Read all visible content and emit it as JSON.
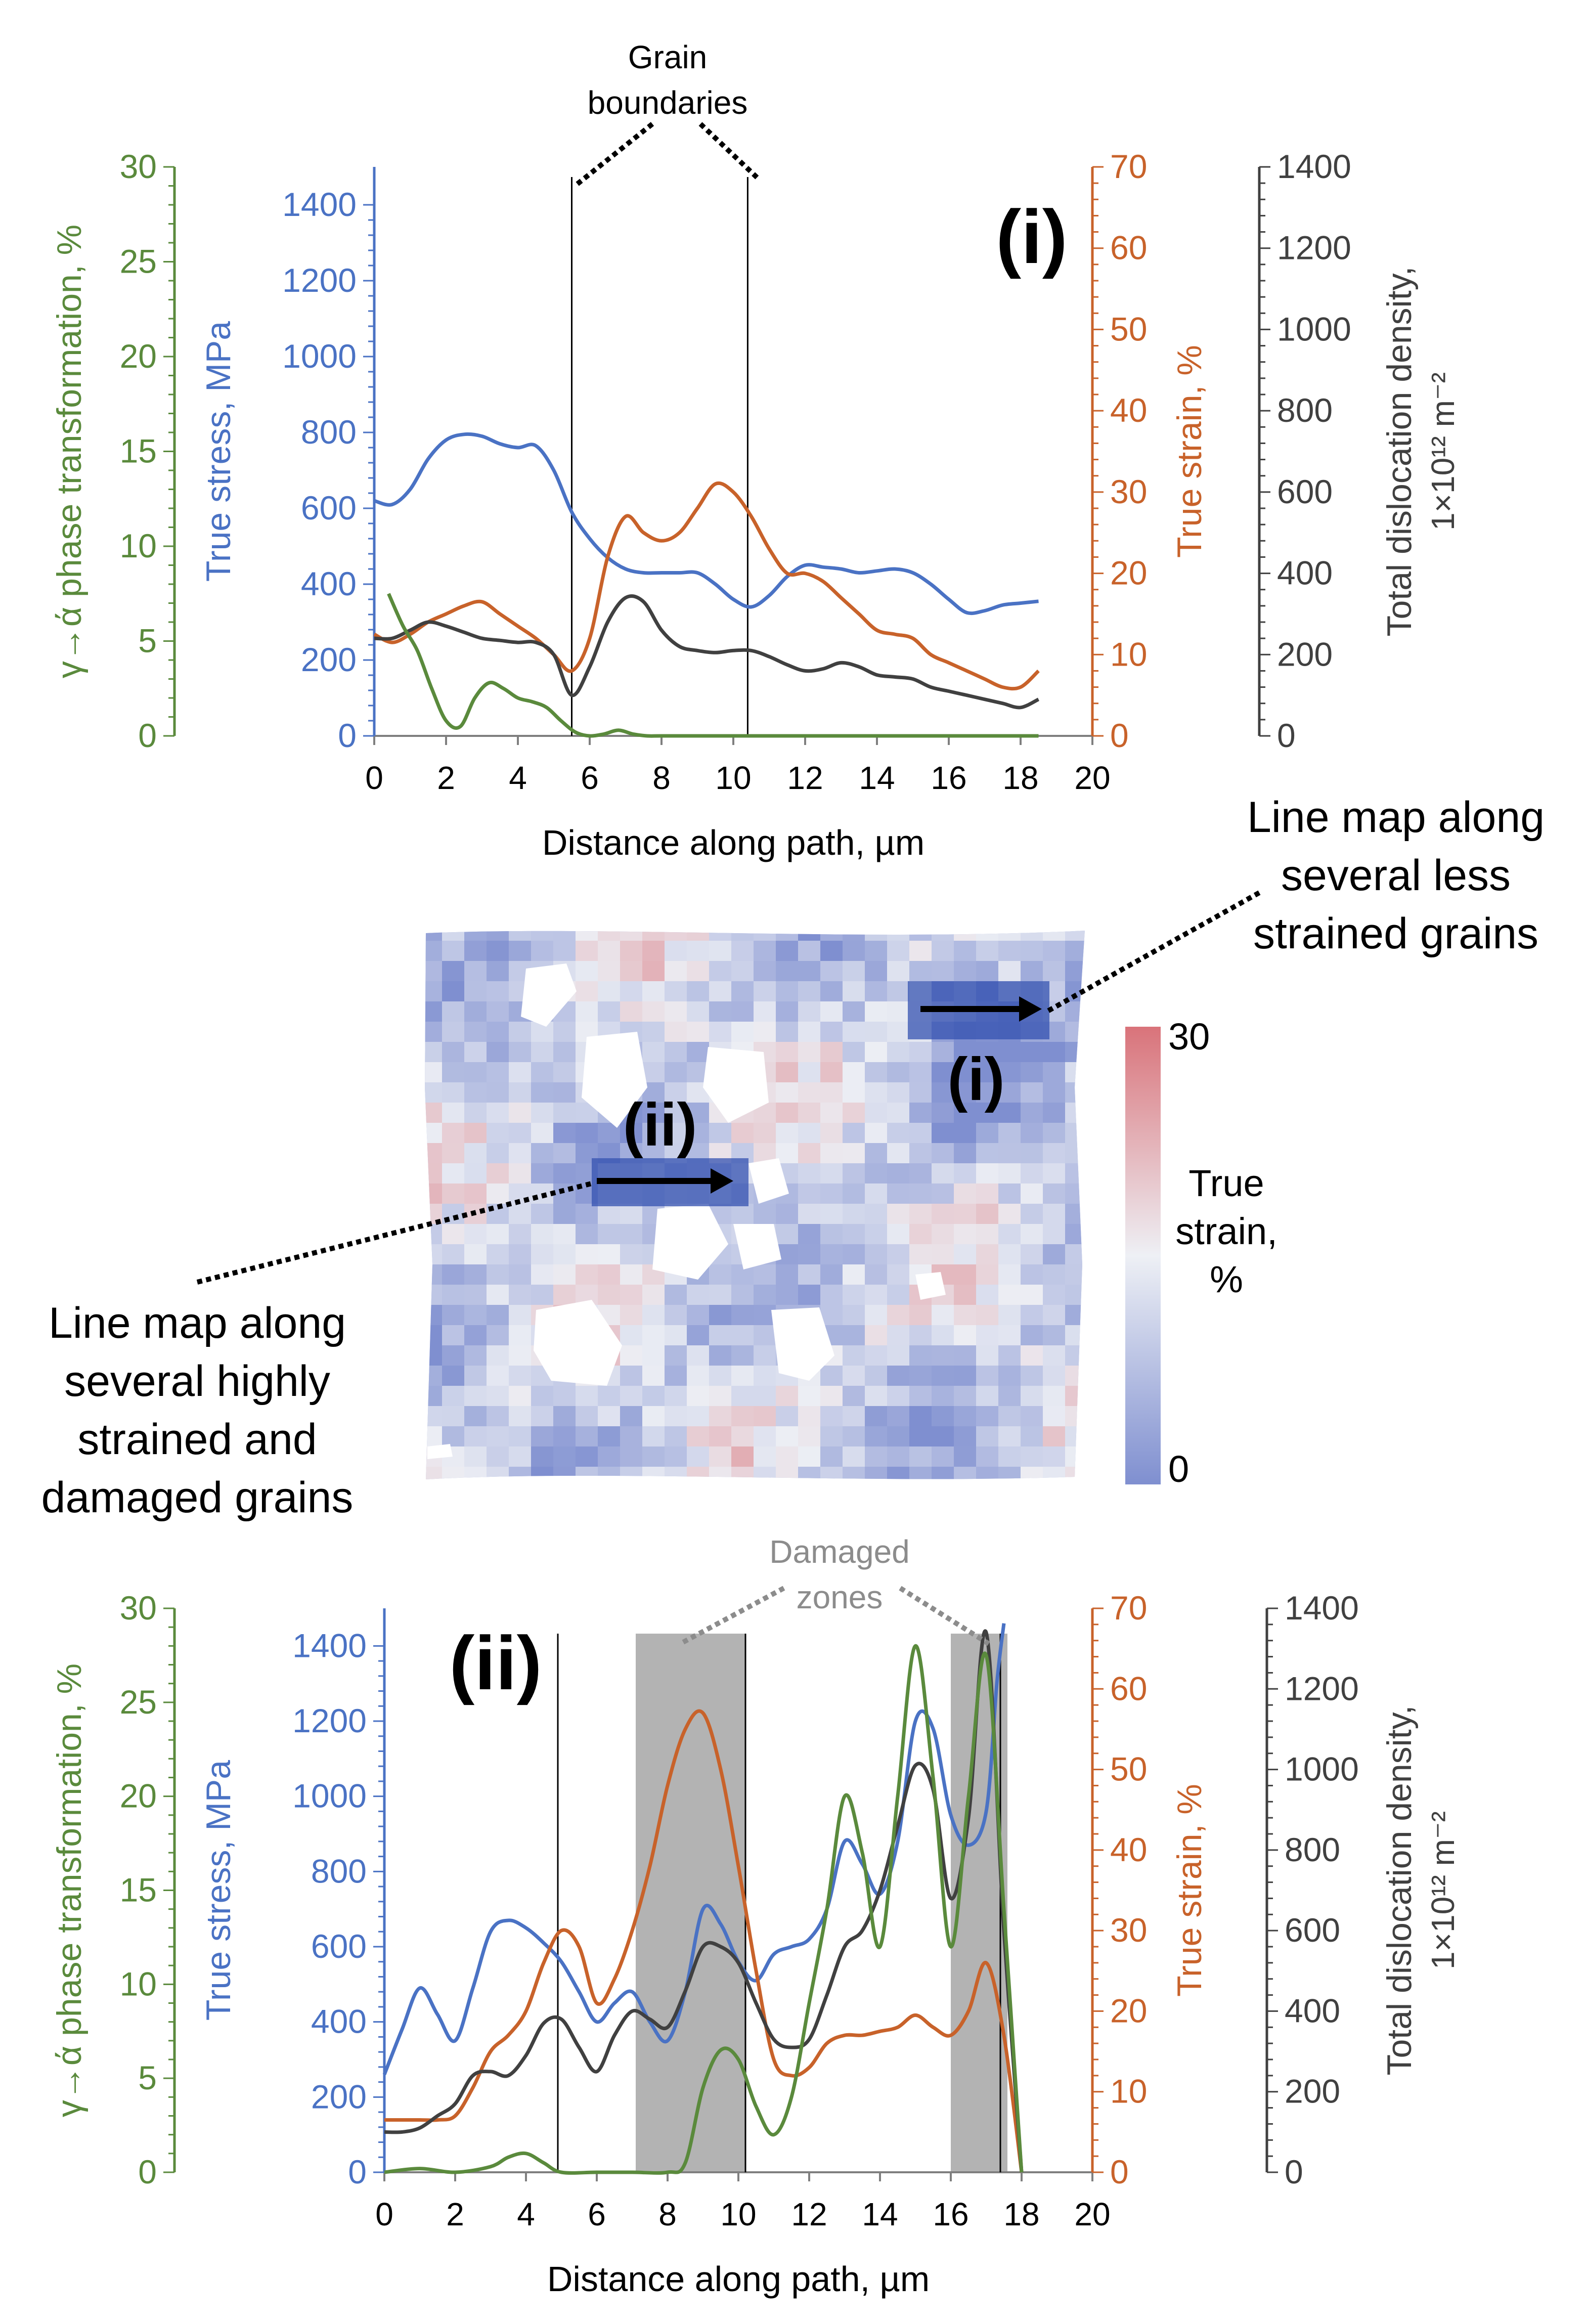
{
  "colors": {
    "phase": "#5a8a3c",
    "stress": "#4a72c4",
    "strain": "#c8622a",
    "disloc": "#404040",
    "zone_fill": "#b3b3b3",
    "note_gray": "#8c8c8c",
    "map_blue": "#7f8fd0",
    "map_red": "#d9737a"
  },
  "annotations": {
    "grain_boundaries": [
      "Grain",
      "boundaries"
    ],
    "damaged_zones": [
      "Damaged",
      "zones"
    ],
    "less_strained": [
      "Line map along",
      "several less",
      "strained grains"
    ],
    "highly_strained": [
      "Line map along",
      "several highly",
      "strained and",
      "damaged grains"
    ],
    "map_label_i": "(i)",
    "map_label_ii": "(ii)",
    "colorbar_max": "30",
    "colorbar_min": "0",
    "colorbar_title": [
      "True",
      "strain,",
      "%"
    ]
  },
  "chart_data": [
    {
      "type": "line",
      "panel_label": "(i)",
      "xlabel": "Distance along path, µm",
      "xlim": [
        0,
        20
      ],
      "xticks": [
        "0",
        "2",
        "4",
        "6",
        "8",
        "10",
        "12",
        "14",
        "16",
        "18",
        "20"
      ],
      "axes": {
        "phase": {
          "label": "γ→ά phase transformation, %",
          "lim": [
            0,
            30
          ],
          "ticks": [
            "0",
            "5",
            "10",
            "15",
            "20",
            "25",
            "30"
          ]
        },
        "stress": {
          "label": "True stress, MPa",
          "lim": [
            0,
            1500
          ],
          "ticks": [
            "0",
            "200",
            "400",
            "600",
            "800",
            "1000",
            "1200",
            "1400"
          ]
        },
        "strain": {
          "label": "True strain, %",
          "lim": [
            0,
            70
          ],
          "ticks": [
            "0",
            "10",
            "20",
            "30",
            "40",
            "50",
            "60",
            "70"
          ]
        },
        "disloc": {
          "label": "Total dislocation density,",
          "label2": "1×10¹² m⁻²",
          "lim": [
            0,
            1400
          ],
          "ticks": [
            "0",
            "200",
            "400",
            "600",
            "800",
            "1000",
            "1200",
            "1400"
          ]
        }
      },
      "grain_boundaries_x": [
        5.5,
        10.4
      ],
      "series": [
        {
          "key": "stress",
          "x": [
            0,
            0.5,
            1,
            1.5,
            2,
            2.5,
            3,
            3.5,
            4,
            4.5,
            5,
            5.5,
            6,
            6.5,
            7,
            7.5,
            8,
            8.5,
            9,
            9.5,
            10,
            10.5,
            11,
            11.5,
            12,
            12.5,
            13,
            13.5,
            14,
            14.5,
            15,
            15.5,
            16,
            16.5,
            17,
            17.5,
            18,
            18.5
          ],
          "values": [
            620,
            610,
            650,
            730,
            780,
            795,
            790,
            770,
            760,
            765,
            700,
            590,
            520,
            470,
            440,
            430,
            430,
            430,
            430,
            400,
            360,
            340,
            370,
            420,
            450,
            445,
            440,
            430,
            435,
            440,
            430,
            400,
            360,
            325,
            330,
            345,
            350,
            355
          ]
        },
        {
          "key": "strain",
          "x": [
            0,
            0.5,
            1,
            1.5,
            2,
            2.5,
            3,
            3.5,
            4,
            4.5,
            5,
            5.5,
            6,
            6.5,
            7,
            7.5,
            8,
            8.5,
            9,
            9.5,
            10,
            10.5,
            11,
            11.5,
            12,
            12.5,
            13,
            13.5,
            14,
            14.5,
            15,
            15.5,
            16,
            16.5,
            17,
            17.5,
            18,
            18.5
          ],
          "values": [
            12.5,
            11.5,
            12.5,
            14,
            15,
            16,
            16.5,
            15,
            13.5,
            12,
            10,
            8,
            12,
            22,
            27,
            25,
            24,
            25,
            28,
            31,
            30,
            27,
            23,
            20,
            20,
            19,
            17,
            15,
            13,
            12.5,
            12,
            10,
            9,
            8,
            7,
            6,
            6,
            8
          ]
        },
        {
          "key": "disloc",
          "x": [
            0,
            0.5,
            1,
            1.5,
            2,
            2.5,
            3,
            3.5,
            4,
            4.5,
            5,
            5.5,
            6,
            6.5,
            7,
            7.5,
            8,
            8.5,
            9,
            9.5,
            10,
            10.5,
            11,
            11.5,
            12,
            12.5,
            13,
            13.5,
            14,
            14.5,
            15,
            15.5,
            16,
            16.5,
            17,
            17.5,
            18,
            18.5
          ],
          "values": [
            240,
            240,
            260,
            280,
            270,
            255,
            240,
            235,
            230,
            230,
            200,
            100,
            170,
            280,
            340,
            330,
            260,
            220,
            210,
            205,
            210,
            210,
            195,
            175,
            160,
            165,
            180,
            170,
            150,
            145,
            140,
            120,
            110,
            100,
            90,
            80,
            70,
            90
          ]
        },
        {
          "key": "phase",
          "x": [
            0.4,
            0.8,
            1.2,
            1.6,
            2,
            2.4,
            2.8,
            3.2,
            3.6,
            4,
            4.4,
            4.8,
            5.2,
            5.6,
            6,
            6.4,
            6.8,
            7.2,
            7.6,
            8,
            9,
            10,
            12,
            14,
            16,
            18,
            18.5
          ],
          "values": [
            7.5,
            5.8,
            4.5,
            2.5,
            0.8,
            0.5,
            2,
            2.8,
            2.5,
            2,
            1.8,
            1.5,
            0.8,
            0.2,
            0,
            0.1,
            0.3,
            0.1,
            0,
            0,
            0,
            0,
            0,
            0,
            0,
            0,
            0
          ]
        }
      ]
    },
    {
      "type": "line",
      "panel_label": "(ii)",
      "xlabel": "Distance along path, µm",
      "xlim": [
        0,
        20
      ],
      "xticks": [
        "0",
        "2",
        "4",
        "6",
        "8",
        "10",
        "12",
        "14",
        "16",
        "18",
        "20"
      ],
      "axes": {
        "phase": {
          "label": "γ→ά phase transformation, %",
          "lim": [
            0,
            30
          ],
          "ticks": [
            "0",
            "5",
            "10",
            "15",
            "20",
            "25",
            "30"
          ]
        },
        "stress": {
          "label": "True stress, MPa",
          "lim": [
            0,
            1500
          ],
          "ticks": [
            "0",
            "200",
            "400",
            "600",
            "800",
            "1000",
            "1200",
            "1400"
          ]
        },
        "strain": {
          "label": "True strain, %",
          "lim": [
            0,
            70
          ],
          "ticks": [
            "0",
            "10",
            "20",
            "30",
            "40",
            "50",
            "60",
            "70"
          ]
        },
        "disloc": {
          "label": "Total dislocation density,",
          "label2": "1×10¹² m⁻²",
          "lim": [
            0,
            1400
          ],
          "ticks": [
            "0",
            "200",
            "400",
            "600",
            "800",
            "1000",
            "1200",
            "1400"
          ]
        }
      },
      "grain_boundaries_x": [
        4.9,
        10.2,
        17.4
      ],
      "damaged_zones_x": [
        [
          7.1,
          10.2
        ],
        [
          16.0,
          17.6
        ]
      ],
      "series": [
        {
          "key": "stress",
          "x": [
            0,
            0.5,
            1,
            1.5,
            2,
            2.5,
            3,
            3.5,
            4,
            4.5,
            5,
            5.5,
            6,
            6.5,
            7,
            7.5,
            8,
            8.5,
            9,
            9.5,
            10,
            10.5,
            11,
            11.5,
            12,
            12.5,
            13,
            13.5,
            14,
            14.5,
            15,
            15.5,
            16,
            16.5,
            17,
            17.3,
            17.5
          ],
          "values": [
            260,
            380,
            490,
            420,
            350,
            490,
            640,
            670,
            650,
            610,
            560,
            480,
            400,
            450,
            480,
            400,
            350,
            480,
            700,
            660,
            560,
            510,
            580,
            600,
            620,
            700,
            880,
            820,
            740,
            880,
            1200,
            1180,
            950,
            870,
            960,
            1300,
            1460
          ]
        },
        {
          "key": "strain",
          "x": [
            0,
            0.5,
            1,
            1.5,
            2,
            2.5,
            3,
            3.5,
            4,
            4.5,
            5,
            5.5,
            6,
            6.5,
            7,
            7.5,
            8,
            8.5,
            9,
            9.5,
            10,
            10.5,
            11,
            11.5,
            12,
            12.5,
            13,
            13.5,
            14,
            14.5,
            15,
            15.5,
            16,
            16.5,
            17,
            17.5,
            18
          ],
          "values": [
            6.5,
            6.5,
            6.5,
            6.5,
            7,
            10.5,
            15,
            17,
            20,
            26,
            30,
            28,
            21,
            24,
            30,
            38,
            48,
            55,
            57,
            50,
            38,
            25,
            14,
            12,
            13,
            16,
            17,
            17,
            17.5,
            18,
            19.5,
            18,
            17,
            20,
            26,
            17,
            0
          ]
        },
        {
          "key": "disloc",
          "x": [
            0,
            0.5,
            1,
            1.5,
            2,
            2.5,
            3,
            3.5,
            4,
            4.5,
            5,
            5.5,
            6,
            6.5,
            7,
            7.5,
            8,
            8.5,
            9,
            9.5,
            10,
            10.5,
            11,
            11.5,
            12,
            12.5,
            13,
            13.5,
            14,
            14.5,
            15,
            15.5,
            16,
            16.5,
            17,
            17.5,
            18
          ],
          "values": [
            100,
            100,
            110,
            140,
            170,
            240,
            250,
            240,
            290,
            370,
            380,
            310,
            250,
            340,
            400,
            380,
            360,
            450,
            560,
            560,
            520,
            420,
            330,
            310,
            330,
            440,
            560,
            600,
            700,
            860,
            1010,
            950,
            680,
            880,
            1340,
            600,
            0
          ]
        },
        {
          "key": "phase",
          "x": [
            0,
            1,
            2,
            3,
            3.5,
            4,
            4.5,
            5,
            6,
            7,
            8,
            8.5,
            9,
            9.5,
            10,
            10.5,
            11,
            11.5,
            12,
            12.5,
            13,
            13.5,
            14,
            14.5,
            15,
            15.5,
            16,
            16.5,
            17,
            17.5,
            18
          ],
          "values": [
            0,
            0.2,
            0,
            0.3,
            0.8,
            1,
            0.5,
            0,
            0,
            0,
            0,
            0.5,
            4.5,
            6.5,
            6,
            3.5,
            2,
            4,
            9,
            14,
            20,
            17,
            12,
            20,
            28,
            21,
            12,
            20,
            27.5,
            14,
            0
          ]
        }
      ]
    }
  ]
}
